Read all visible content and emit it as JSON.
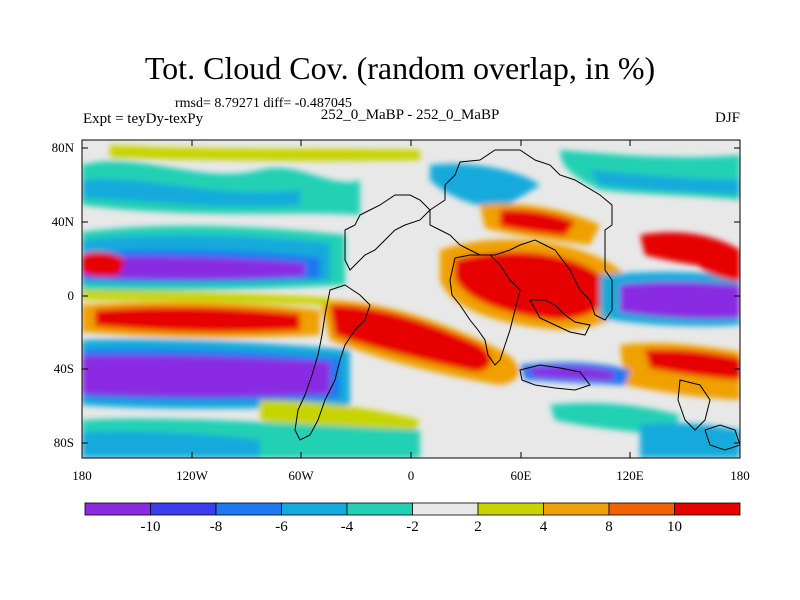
{
  "title": "Tot. Cloud Cov. (random overlap, in %)",
  "stats": "rmsd= 8.79271 diff= -0.487045",
  "experiment_label": "Expt = teyDy-texPy",
  "runs_label": "252_0_MaBP - 252_0_MaBP",
  "season": "DJF",
  "y_ticks": [
    "80N",
    "40N",
    "0",
    "40S",
    "80S"
  ],
  "x_ticks": [
    "180",
    "120W",
    "60W",
    "0",
    "60E",
    "120E",
    "180"
  ],
  "colorbar": {
    "labels": [
      "-10",
      "-8",
      "-6",
      "-4",
      "-2",
      "2",
      "4",
      "8",
      "10"
    ],
    "colors": [
      "#8a2be2",
      "#3c3cf0",
      "#1e78f0",
      "#14aadc",
      "#22d0b4",
      "#e8e8e8",
      "#c8d400",
      "#f0a000",
      "#f06400",
      "#e60000"
    ]
  }
}
